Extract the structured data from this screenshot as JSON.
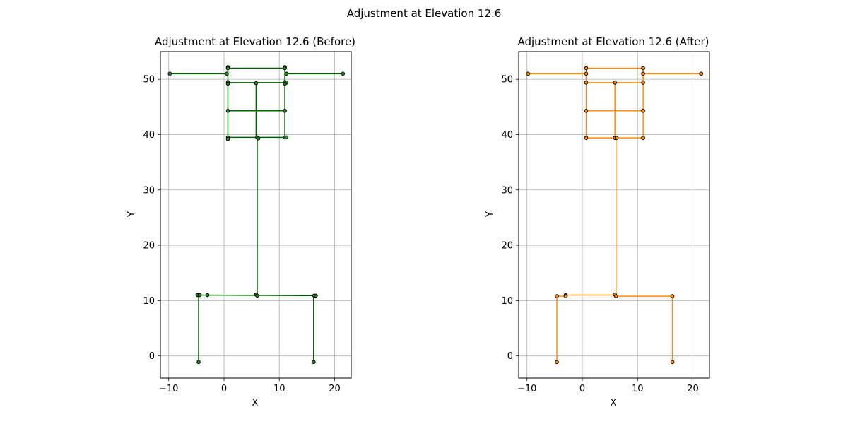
{
  "figure": {
    "suptitle": "Adjustment at Elevation 12.6"
  },
  "chart_data": [
    {
      "type": "line",
      "title": "Adjustment at Elevation 12.6 (Before)",
      "xlabel": "X",
      "ylabel": "Y",
      "xlim": [
        -11.5,
        23
      ],
      "ylim": [
        -4,
        55
      ],
      "xticks": [
        -10,
        0,
        10,
        20
      ],
      "yticks": [
        0,
        10,
        20,
        30,
        40,
        50
      ],
      "grid": true,
      "line_color": "#006400",
      "marker_fill": "#228b22",
      "segments": [
        [
          [
            -9.8,
            51.0
          ],
          [
            0.5,
            51.0
          ]
        ],
        [
          [
            11.0,
            51.0
          ],
          [
            21.5,
            51.0
          ]
        ],
        [
          [
            0.7,
            52.0
          ],
          [
            11.0,
            52.0
          ]
        ],
        [
          [
            0.7,
            52.0
          ],
          [
            0.7,
            39.3
          ]
        ],
        [
          [
            11.0,
            52.0
          ],
          [
            11.0,
            39.3
          ]
        ],
        [
          [
            0.7,
            49.4
          ],
          [
            11.0,
            49.4
          ]
        ],
        [
          [
            0.7,
            44.3
          ],
          [
            11.0,
            44.3
          ]
        ],
        [
          [
            0.7,
            39.5
          ],
          [
            11.0,
            39.5
          ]
        ],
        [
          [
            5.8,
            49.4
          ],
          [
            5.8,
            39.5
          ]
        ],
        [
          [
            6.0,
            39.3
          ],
          [
            6.0,
            11.0
          ]
        ],
        [
          [
            -4.6,
            11.0
          ],
          [
            16.5,
            10.9
          ]
        ],
        [
          [
            -4.6,
            11.0
          ],
          [
            -4.6,
            -1.1
          ]
        ],
        [
          [
            16.2,
            10.9
          ],
          [
            16.2,
            -1.1
          ]
        ]
      ],
      "points": [
        [
          -9.8,
          51.0
        ],
        [
          0.5,
          51.0
        ],
        [
          0.7,
          52.2
        ],
        [
          0.7,
          52.0
        ],
        [
          11.0,
          52.2
        ],
        [
          11.0,
          52.0
        ],
        [
          11.3,
          51.0
        ],
        [
          21.5,
          51.0
        ],
        [
          0.7,
          49.5
        ],
        [
          0.7,
          49.2
        ],
        [
          5.8,
          49.3
        ],
        [
          11.0,
          49.5
        ],
        [
          11.3,
          49.4
        ],
        [
          11.0,
          49.2
        ],
        [
          0.7,
          44.3
        ],
        [
          11.0,
          44.3
        ],
        [
          0.7,
          39.5
        ],
        [
          0.7,
          39.2
        ],
        [
          6.0,
          39.5
        ],
        [
          6.2,
          39.3
        ],
        [
          11.0,
          39.5
        ],
        [
          11.3,
          39.5
        ],
        [
          -4.8,
          11.0
        ],
        [
          -4.4,
          11.0
        ],
        [
          -3.0,
          11.0
        ],
        [
          5.8,
          11.1
        ],
        [
          6.0,
          10.9
        ],
        [
          16.3,
          10.9
        ],
        [
          16.6,
          10.9
        ],
        [
          -4.6,
          -1.1
        ],
        [
          16.2,
          -1.1
        ]
      ]
    },
    {
      "type": "line",
      "title": "Adjustment at Elevation 12.6 (After)",
      "xlabel": "X",
      "ylabel": "Y",
      "xlim": [
        -11.5,
        23
      ],
      "ylim": [
        -4,
        55
      ],
      "xticks": [
        -10,
        0,
        10,
        20
      ],
      "yticks": [
        0,
        10,
        20,
        30,
        40,
        50
      ],
      "grid": true,
      "line_color": "#ff8c00",
      "marker_fill": "#ff8c00",
      "segments": [
        [
          [
            -9.8,
            51.0
          ],
          [
            0.7,
            51.0
          ]
        ],
        [
          [
            11.0,
            51.0
          ],
          [
            21.5,
            51.0
          ]
        ],
        [
          [
            0.7,
            52.0
          ],
          [
            11.0,
            52.0
          ]
        ],
        [
          [
            0.7,
            52.0
          ],
          [
            0.7,
            39.3
          ]
        ],
        [
          [
            11.0,
            52.0
          ],
          [
            11.0,
            39.3
          ]
        ],
        [
          [
            0.7,
            49.4
          ],
          [
            11.0,
            49.4
          ]
        ],
        [
          [
            0.7,
            44.3
          ],
          [
            11.0,
            44.3
          ]
        ],
        [
          [
            0.7,
            39.4
          ],
          [
            11.0,
            39.4
          ]
        ],
        [
          [
            5.9,
            49.4
          ],
          [
            5.9,
            39.4
          ]
        ],
        [
          [
            6.1,
            39.4
          ],
          [
            6.1,
            11.0
          ]
        ],
        [
          [
            -4.6,
            10.8
          ],
          [
            -3.0,
            10.8
          ]
        ],
        [
          [
            -3.0,
            11.0
          ],
          [
            6.1,
            11.0
          ]
        ],
        [
          [
            6.1,
            10.8
          ],
          [
            16.3,
            10.8
          ]
        ],
        [
          [
            -4.6,
            10.8
          ],
          [
            -4.6,
            -1.1
          ]
        ],
        [
          [
            16.3,
            10.8
          ],
          [
            16.3,
            -1.1
          ]
        ]
      ],
      "points": [
        [
          -9.8,
          51.0
        ],
        [
          0.7,
          51.0
        ],
        [
          0.7,
          52.0
        ],
        [
          11.0,
          52.0
        ],
        [
          11.0,
          51.0
        ],
        [
          21.5,
          51.0
        ],
        [
          0.7,
          49.4
        ],
        [
          5.9,
          49.4
        ],
        [
          11.0,
          49.4
        ],
        [
          0.7,
          44.3
        ],
        [
          11.0,
          44.3
        ],
        [
          0.7,
          39.4
        ],
        [
          5.9,
          39.4
        ],
        [
          6.2,
          39.4
        ],
        [
          11.0,
          39.4
        ],
        [
          -4.6,
          10.8
        ],
        [
          -3.0,
          11.0
        ],
        [
          -3.0,
          10.8
        ],
        [
          5.9,
          11.1
        ],
        [
          6.1,
          10.8
        ],
        [
          16.3,
          10.8
        ],
        [
          -4.6,
          -1.1
        ],
        [
          16.3,
          -1.1
        ]
      ]
    }
  ]
}
